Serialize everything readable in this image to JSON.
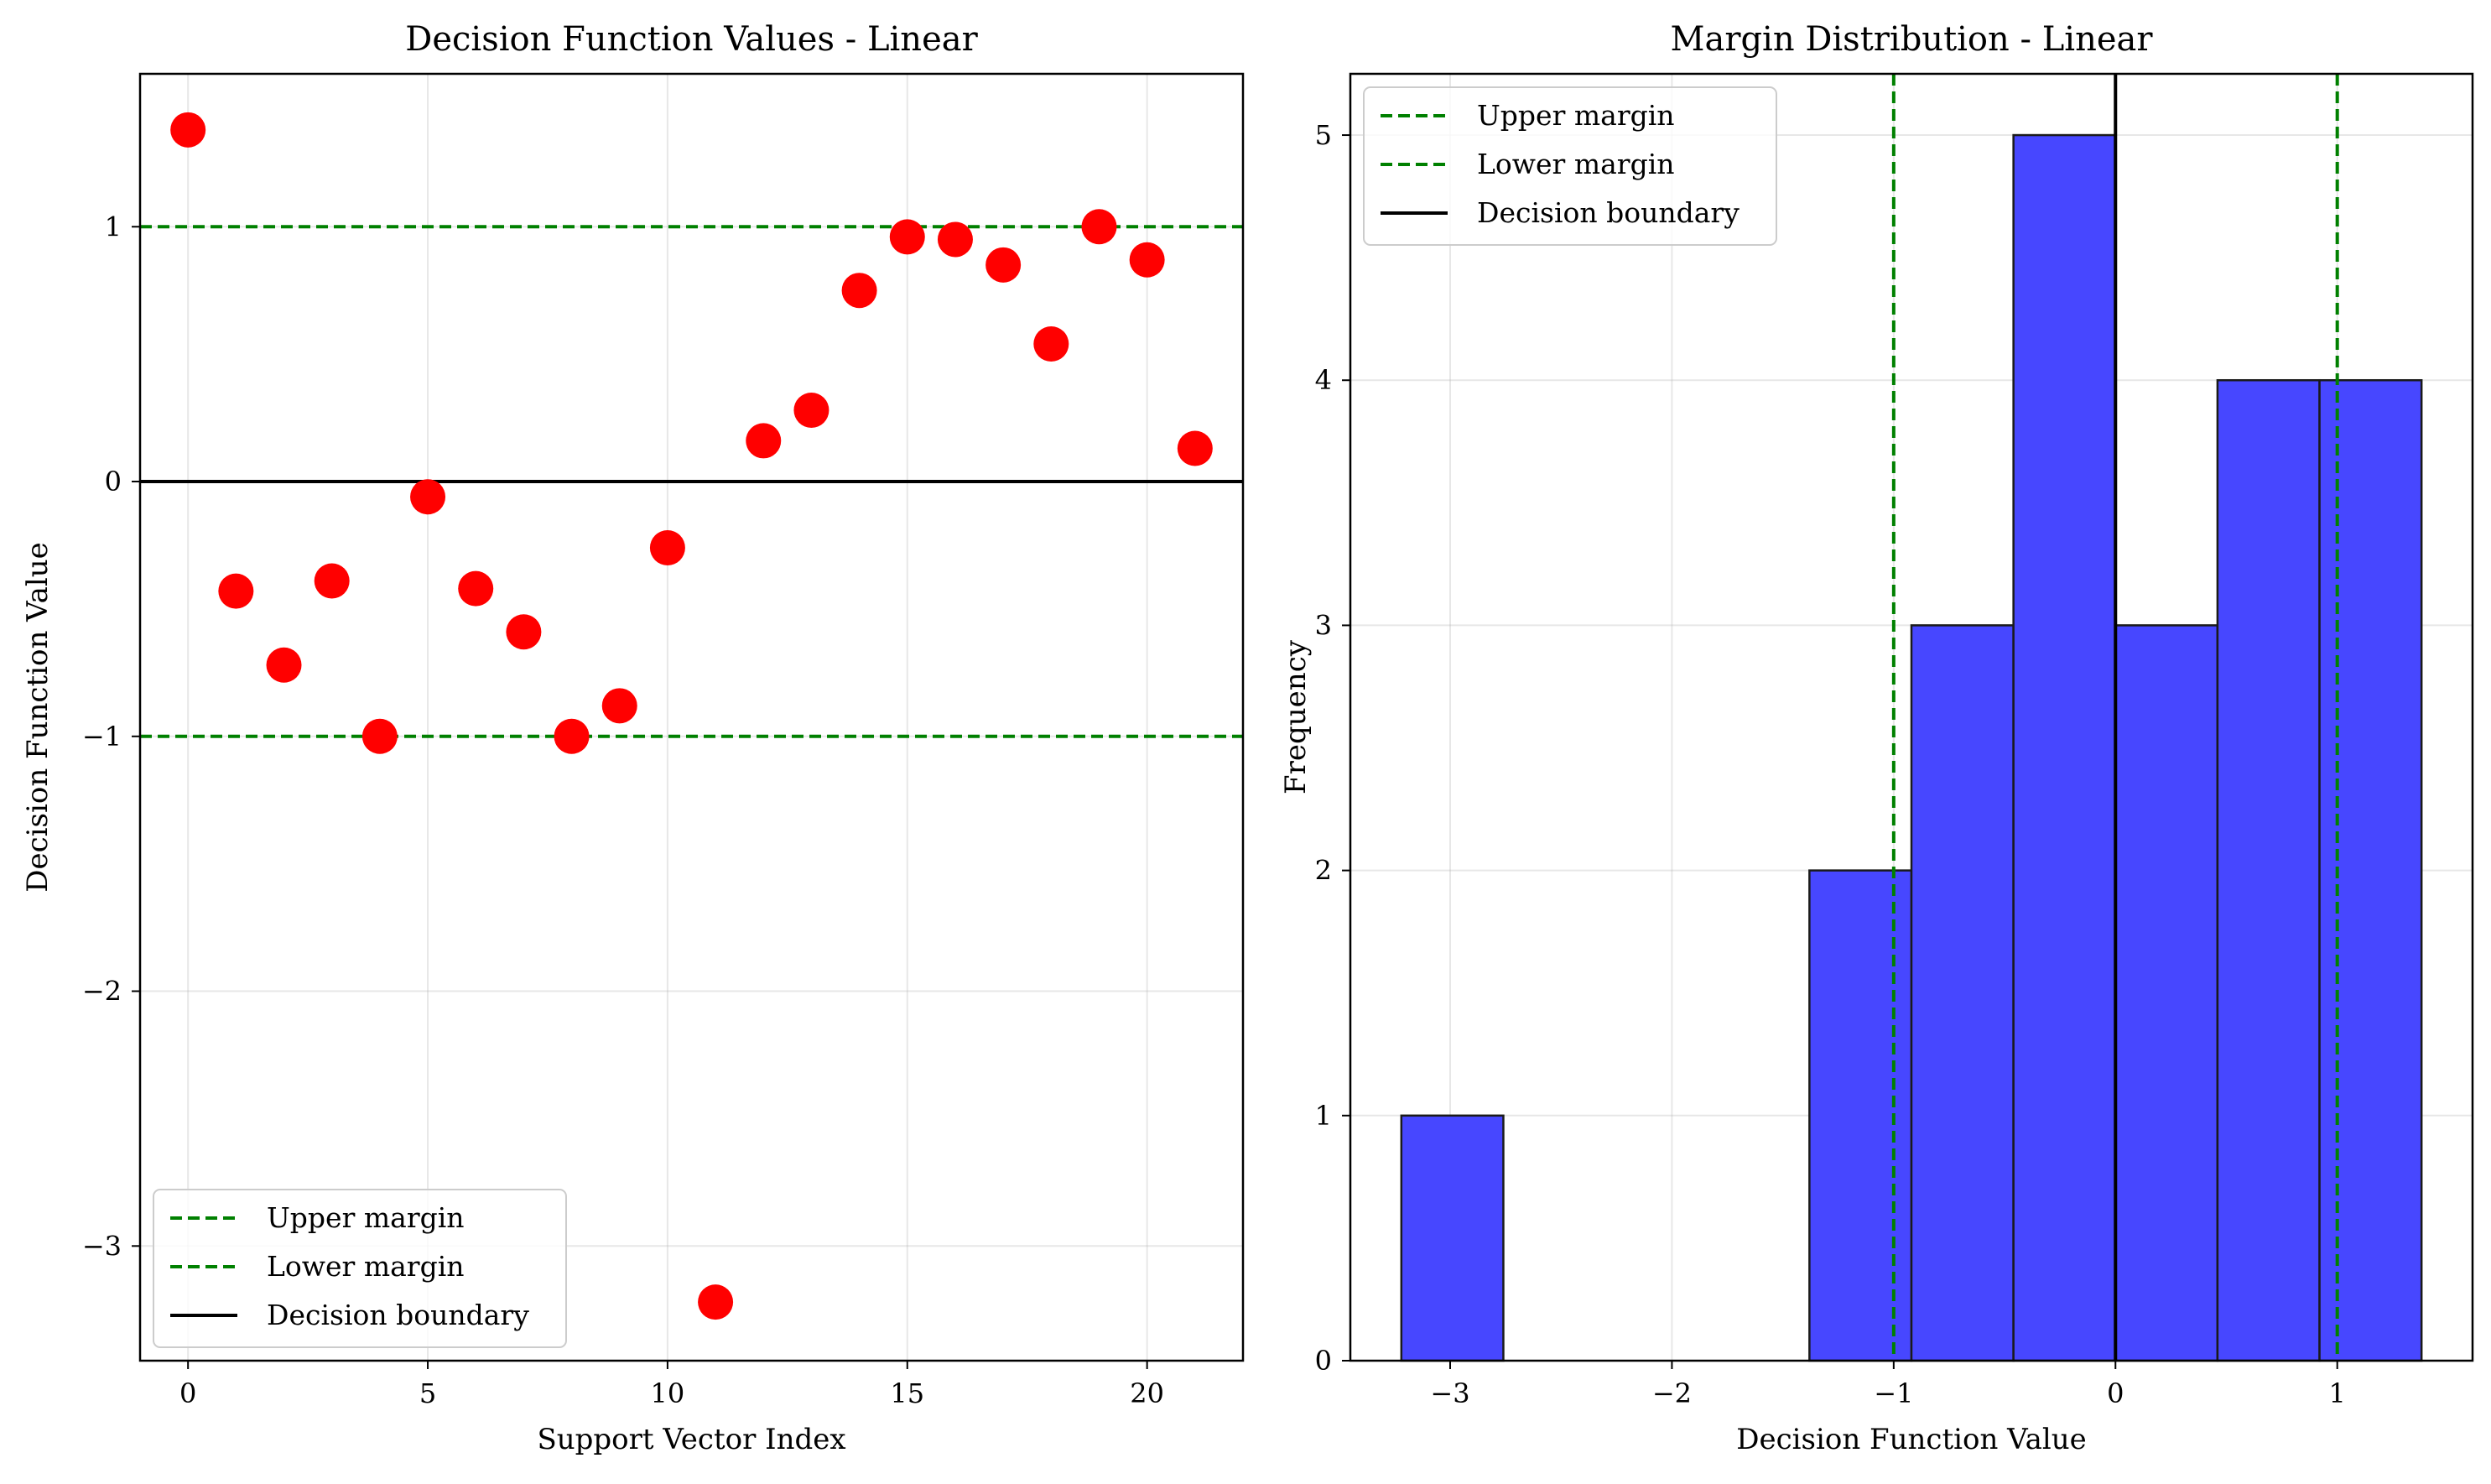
{
  "chart_data": [
    {
      "type": "scatter",
      "title": "Decision Function Values - Linear",
      "xlabel": "Support Vector Index",
      "ylabel": "Decision Function Value",
      "xlim": [
        -1,
        22
      ],
      "ylim": [
        -3.45,
        1.6
      ],
      "xticks": [
        0,
        5,
        10,
        15,
        20
      ],
      "xtick_labels": [
        "0",
        "5",
        "10",
        "15",
        "20"
      ],
      "yticks": [
        -3,
        -2,
        -1,
        0,
        1
      ],
      "ytick_labels": [
        "−3",
        "−2",
        "−1",
        "0",
        "1"
      ],
      "grid": true,
      "series": [
        {
          "color": "#ff0000",
          "x": [
            0,
            1,
            2,
            3,
            4,
            5,
            6,
            7,
            8,
            9,
            10,
            11,
            12,
            13,
            14,
            15,
            16,
            17,
            18,
            19,
            20,
            21
          ],
          "y": [
            1.38,
            -0.43,
            -0.72,
            -0.39,
            -1.0,
            -0.06,
            -0.42,
            -0.59,
            -1.0,
            -0.88,
            -0.26,
            -3.22,
            0.16,
            0.28,
            0.75,
            0.96,
            0.95,
            0.85,
            0.54,
            1.0,
            0.87,
            0.13
          ]
        }
      ],
      "hlines": [
        {
          "name": "Upper margin",
          "y": 1,
          "color": "#008000",
          "style": "dashed"
        },
        {
          "name": "Lower margin",
          "y": -1,
          "color": "#008000",
          "style": "dashed"
        },
        {
          "name": "Decision boundary",
          "y": 0,
          "color": "#000000",
          "style": "solid"
        }
      ],
      "legend": {
        "position": "lower-left",
        "entries": [
          "Upper margin",
          "Lower margin",
          "Decision boundary"
        ]
      }
    },
    {
      "type": "bar",
      "subtype": "histogram",
      "title": "Margin Distribution - Linear",
      "xlabel": "Decision Function Value",
      "ylabel": "Frequency",
      "xlim": [
        -3.45,
        1.61
      ],
      "ylim": [
        0,
        5.25
      ],
      "xticks": [
        -3,
        -2,
        -1,
        0,
        1
      ],
      "xtick_labels": [
        "−3",
        "−2",
        "−1",
        "0",
        "1"
      ],
      "yticks": [
        0,
        1,
        2,
        3,
        4,
        5
      ],
      "ytick_labels": [
        "0",
        "1",
        "2",
        "3",
        "4",
        "5"
      ],
      "grid": true,
      "bar_color": "#4747ff",
      "bins": [
        {
          "x0": -3.22,
          "x1": -2.76,
          "count": 1
        },
        {
          "x0": -2.76,
          "x1": -2.3,
          "count": 0
        },
        {
          "x0": -2.3,
          "x1": -1.84,
          "count": 0
        },
        {
          "x0": -1.84,
          "x1": -1.38,
          "count": 0
        },
        {
          "x0": -1.38,
          "x1": -0.92,
          "count": 2
        },
        {
          "x0": -0.92,
          "x1": -0.46,
          "count": 3
        },
        {
          "x0": -0.46,
          "x1": 0.0,
          "count": 5
        },
        {
          "x0": 0.0,
          "x1": 0.46,
          "count": 3
        },
        {
          "x0": 0.46,
          "x1": 0.92,
          "count": 4
        },
        {
          "x0": 0.92,
          "x1": 1.38,
          "count": 4
        }
      ],
      "vlines": [
        {
          "name": "Upper margin",
          "x": 1,
          "color": "#008000",
          "style": "dashed"
        },
        {
          "name": "Lower margin",
          "x": -1,
          "color": "#008000",
          "style": "dashed"
        },
        {
          "name": "Decision boundary",
          "x": 0,
          "color": "#000000",
          "style": "solid"
        }
      ],
      "legend": {
        "position": "upper-left",
        "entries": [
          "Upper margin",
          "Lower margin",
          "Decision boundary"
        ]
      }
    }
  ]
}
